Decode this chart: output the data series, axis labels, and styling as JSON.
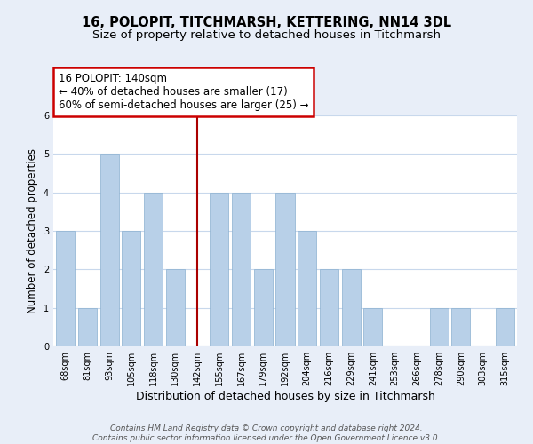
{
  "title": "16, POLOPIT, TITCHMARSH, KETTERING, NN14 3DL",
  "subtitle": "Size of property relative to detached houses in Titchmarsh",
  "xlabel": "Distribution of detached houses by size in Titchmarsh",
  "ylabel": "Number of detached properties",
  "categories": [
    "68sqm",
    "81sqm",
    "93sqm",
    "105sqm",
    "118sqm",
    "130sqm",
    "142sqm",
    "155sqm",
    "167sqm",
    "179sqm",
    "192sqm",
    "204sqm",
    "216sqm",
    "229sqm",
    "241sqm",
    "253sqm",
    "266sqm",
    "278sqm",
    "290sqm",
    "303sqm",
    "315sqm"
  ],
  "values": [
    3,
    1,
    5,
    3,
    4,
    2,
    0,
    4,
    4,
    2,
    4,
    3,
    2,
    2,
    1,
    0,
    0,
    1,
    1,
    0,
    1
  ],
  "bar_color": "#b8d0e8",
  "bar_edge_color": "#8ab0d0",
  "highlight_index": 6,
  "highlight_line_color": "#aa0000",
  "annotation_text": "16 POLOPIT: 140sqm\n← 40% of detached houses are smaller (17)\n60% of semi-detached houses are larger (25) →",
  "annotation_box_edgecolor": "#cc0000",
  "annotation_box_facecolor": "#ffffff",
  "ylim": [
    0,
    6
  ],
  "yticks": [
    0,
    1,
    2,
    3,
    4,
    5,
    6
  ],
  "footer_line1": "Contains HM Land Registry data © Crown copyright and database right 2024.",
  "footer_line2": "Contains public sector information licensed under the Open Government Licence v3.0.",
  "background_color": "#e8eef8",
  "plot_background_color": "#ffffff",
  "grid_color": "#c8d8ec",
  "title_fontsize": 10.5,
  "subtitle_fontsize": 9.5,
  "xlabel_fontsize": 9,
  "ylabel_fontsize": 8.5,
  "tick_fontsize": 7,
  "footer_fontsize": 6.5,
  "annotation_fontsize": 8.5
}
